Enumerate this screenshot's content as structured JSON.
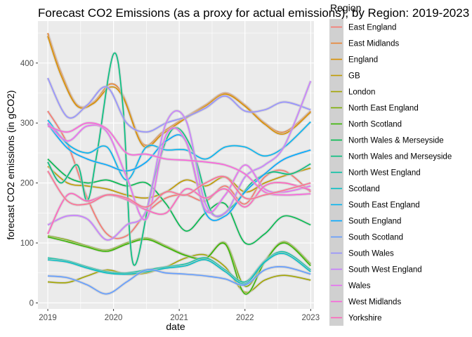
{
  "chart_data": {
    "type": "line",
    "title": "Forecast CO2 Emissions (as a proxy for actual emissions), by Region: 2019-2023",
    "xlabel": "date",
    "ylabel": "forecast CO2 emissions (in gCO2)",
    "xlim": [
      2018.85,
      2023.05
    ],
    "ylim": [
      -10,
      470
    ],
    "x_ticks": [
      2019,
      2020,
      2021,
      2022,
      2023
    ],
    "y_ticks": [
      0,
      100,
      200,
      300,
      400
    ],
    "grid": true,
    "legend": {
      "title": "Region",
      "position": "right"
    },
    "series": [
      {
        "name": "East England",
        "color": "#F8766D",
        "x": [
          2019,
          2019.3,
          2019.6,
          2019.9,
          2020.2,
          2020.5,
          2020.8,
          2021.1,
          2021.4,
          2021.7,
          2022,
          2022.3,
          2022.6,
          2023
        ],
        "y": [
          320,
          265,
          175,
          115,
          112,
          150,
          175,
          180,
          170,
          195,
          165,
          210,
          220,
          185
        ]
      },
      {
        "name": "East Midlands",
        "color": "#EA8331",
        "x": [
          2019,
          2019.2,
          2019.45,
          2019.7,
          2019.95,
          2020.15,
          2020.45,
          2020.75,
          2021.1,
          2021.4,
          2021.7,
          2022,
          2022.3,
          2022.6,
          2023
        ],
        "y": [
          450,
          385,
          330,
          335,
          365,
          345,
          265,
          285,
          310,
          330,
          350,
          330,
          300,
          285,
          320
        ]
      },
      {
        "name": "England",
        "color": "#D89000",
        "x": [
          2019,
          2019.2,
          2019.45,
          2019.7,
          2019.95,
          2020.15,
          2020.45,
          2020.75,
          2021.1,
          2021.4,
          2021.7,
          2022,
          2022.3,
          2022.6,
          2023
        ],
        "y": [
          445,
          380,
          328,
          333,
          360,
          342,
          262,
          282,
          308,
          328,
          348,
          328,
          298,
          282,
          318
        ]
      },
      {
        "name": "GB",
        "color": "#C09B00",
        "x": [
          2019,
          2019.3,
          2019.6,
          2019.9,
          2020.2,
          2020.5,
          2020.8,
          2021.1,
          2021.4,
          2021.7,
          2022,
          2022.3,
          2022.6,
          2023
        ],
        "y": [
          228,
          200,
          195,
          190,
          180,
          175,
          185,
          205,
          195,
          210,
          185,
          200,
          212,
          225
        ]
      },
      {
        "name": "London",
        "color": "#A3A500",
        "x": [
          2019,
          2019.3,
          2019.6,
          2019.9,
          2020.2,
          2020.5,
          2020.8,
          2021.1,
          2021.4,
          2021.7,
          2022,
          2022.3,
          2022.6,
          2023
        ],
        "y": [
          35,
          34,
          45,
          55,
          48,
          50,
          60,
          75,
          80,
          60,
          18,
          38,
          46,
          38
        ]
      },
      {
        "name": "North East England",
        "color": "#7CAE00",
        "x": [
          2019,
          2019.3,
          2019.6,
          2019.9,
          2020.2,
          2020.5,
          2020.8,
          2021.1,
          2021.4,
          2021.7,
          2022,
          2022.3,
          2022.6,
          2023
        ],
        "y": [
          112,
          105,
          95,
          88,
          100,
          108,
          95,
          80,
          75,
          100,
          28,
          70,
          102,
          65
        ]
      },
      {
        "name": "North Scotland",
        "color": "#39B600",
        "x": [
          2019,
          2019.3,
          2019.6,
          2019.9,
          2020.2,
          2020.5,
          2020.8,
          2021.1,
          2021.4,
          2021.7,
          2022,
          2022.3,
          2022.6,
          2023
        ],
        "y": [
          110,
          102,
          93,
          86,
          98,
          106,
          93,
          79,
          74,
          98,
          15,
          68,
          100,
          62
        ]
      },
      {
        "name": "North Wales & Merseyside",
        "color": "#00BB4E",
        "x": [
          2019,
          2019.3,
          2019.6,
          2019.9,
          2020.2,
          2020.5,
          2020.8,
          2021.1,
          2021.4,
          2021.7,
          2022,
          2022.3,
          2022.6,
          2023
        ],
        "y": [
          240,
          210,
          200,
          205,
          195,
          200,
          165,
          120,
          150,
          165,
          100,
          115,
          145,
          130
        ]
      },
      {
        "name": "North Wales and Merseyside",
        "color": "#00BF7D",
        "x": [
          2019,
          2019.2,
          2019.45,
          2019.6,
          2019.75,
          2020,
          2020.15,
          2020.3,
          2020.6,
          2020.9,
          2021.2,
          2021.5,
          2021.8,
          2022.1,
          2022.4,
          2022.7,
          2023
        ],
        "y": [
          235,
          200,
          230,
          170,
          250,
          415,
          320,
          65,
          200,
          290,
          255,
          150,
          160,
          200,
          218,
          215,
          232
        ]
      },
      {
        "name": "North West England",
        "color": "#00C1A3",
        "x": [
          2019,
          2019.3,
          2019.6,
          2019.9,
          2020.2,
          2020.5,
          2020.8,
          2021.1,
          2021.4,
          2021.7,
          2022,
          2022.3,
          2022.6,
          2023
        ],
        "y": [
          75,
          70,
          60,
          52,
          50,
          55,
          60,
          65,
          75,
          55,
          35,
          70,
          85,
          55
        ]
      },
      {
        "name": "Scotland",
        "color": "#00BFC4",
        "x": [
          2019,
          2019.3,
          2019.6,
          2019.9,
          2020.2,
          2020.5,
          2020.8,
          2021.1,
          2021.4,
          2021.7,
          2022,
          2022.3,
          2022.6,
          2023
        ],
        "y": [
          72,
          68,
          58,
          50,
          48,
          52,
          58,
          62,
          72,
          52,
          32,
          68,
          82,
          52
        ]
      },
      {
        "name": "South East England",
        "color": "#00B4F0",
        "x": [
          2019,
          2019.3,
          2019.6,
          2019.9,
          2020.2,
          2020.5,
          2020.8,
          2021.1,
          2021.4,
          2021.7,
          2022,
          2022.3,
          2022.6,
          2023
        ],
        "y": [
          305,
          265,
          250,
          260,
          205,
          260,
          255,
          255,
          240,
          260,
          260,
          245,
          260,
          302
        ]
      },
      {
        "name": "South England",
        "color": "#00A9FF",
        "x": [
          2019,
          2019.3,
          2019.6,
          2019.9,
          2020.2,
          2020.5,
          2020.8,
          2021.1,
          2021.4,
          2021.7,
          2022,
          2022.3,
          2022.6,
          2023
        ],
        "y": [
          298,
          258,
          240,
          230,
          220,
          235,
          270,
          270,
          150,
          145,
          185,
          215,
          240,
          255
        ]
      },
      {
        "name": "South Scotland",
        "color": "#619CFF",
        "x": [
          2019,
          2019.3,
          2019.6,
          2019.9,
          2020.2,
          2020.5,
          2020.8,
          2021.1,
          2021.4,
          2021.7,
          2022,
          2022.3,
          2022.6,
          2023
        ],
        "y": [
          45,
          42,
          30,
          15,
          35,
          55,
          50,
          48,
          45,
          40,
          30,
          55,
          60,
          48
        ]
      },
      {
        "name": "South Wales",
        "color": "#9590FF",
        "x": [
          2019,
          2019.3,
          2019.6,
          2019.9,
          2020.2,
          2020.5,
          2020.8,
          2021.1,
          2021.4,
          2021.7,
          2022,
          2022.3,
          2022.6,
          2023
        ],
        "y": [
          375,
          310,
          330,
          360,
          300,
          285,
          300,
          310,
          325,
          345,
          320,
          322,
          335,
          322
        ]
      },
      {
        "name": "South West England",
        "color": "#C77CFF",
        "x": [
          2019,
          2019.3,
          2019.6,
          2019.9,
          2020.2,
          2020.5,
          2020.8,
          2021.1,
          2021.4,
          2021.7,
          2022,
          2022.3,
          2022.6,
          2023
        ],
        "y": [
          130,
          145,
          140,
          105,
          130,
          155,
          300,
          305,
          165,
          150,
          210,
          230,
          262,
          370
        ]
      },
      {
        "name": "Wales",
        "color": "#E76BF3",
        "x": [
          2019,
          2019.3,
          2019.6,
          2019.9,
          2020.2,
          2020.5,
          2020.8,
          2021.1,
          2021.4,
          2021.7,
          2022,
          2022.3,
          2022.6,
          2023
        ],
        "y": [
          300,
          270,
          295,
          285,
          210,
          140,
          280,
          270,
          155,
          180,
          230,
          190,
          185,
          195
        ]
      },
      {
        "name": "West Midlands",
        "color": "#FA62DB",
        "x": [
          2019,
          2019.3,
          2019.6,
          2019.9,
          2020.2,
          2020.5,
          2020.8,
          2021.1,
          2021.4,
          2021.7,
          2022,
          2022.3,
          2022.6,
          2023
        ],
        "y": [
          295,
          285,
          300,
          290,
          250,
          248,
          240,
          238,
          235,
          230,
          215,
          185,
          180,
          182
        ]
      },
      {
        "name": "Yorkshire",
        "color": "#FF62BC",
        "x": [
          2019,
          2019.3,
          2019.6,
          2019.9,
          2020.2,
          2020.5,
          2020.8,
          2021.1,
          2021.4,
          2021.7,
          2022,
          2022.3,
          2022.6,
          2023
        ],
        "y": [
          115,
          180,
          170,
          180,
          172,
          155,
          150,
          190,
          175,
          190,
          160,
          195,
          200,
          188
        ]
      },
      {
        "name": "",
        "color": "#FF6C91",
        "x": [
          2019,
          2019.3,
          2019.6,
          2019.9,
          2020.2,
          2020.5,
          2020.8,
          2021.1,
          2021.4,
          2021.7,
          2022,
          2022.3,
          2022.6,
          2023
        ],
        "y": [
          220,
          170,
          165,
          180,
          175,
          160,
          185,
          180,
          200,
          210,
          175,
          180,
          188,
          200
        ]
      }
    ]
  }
}
